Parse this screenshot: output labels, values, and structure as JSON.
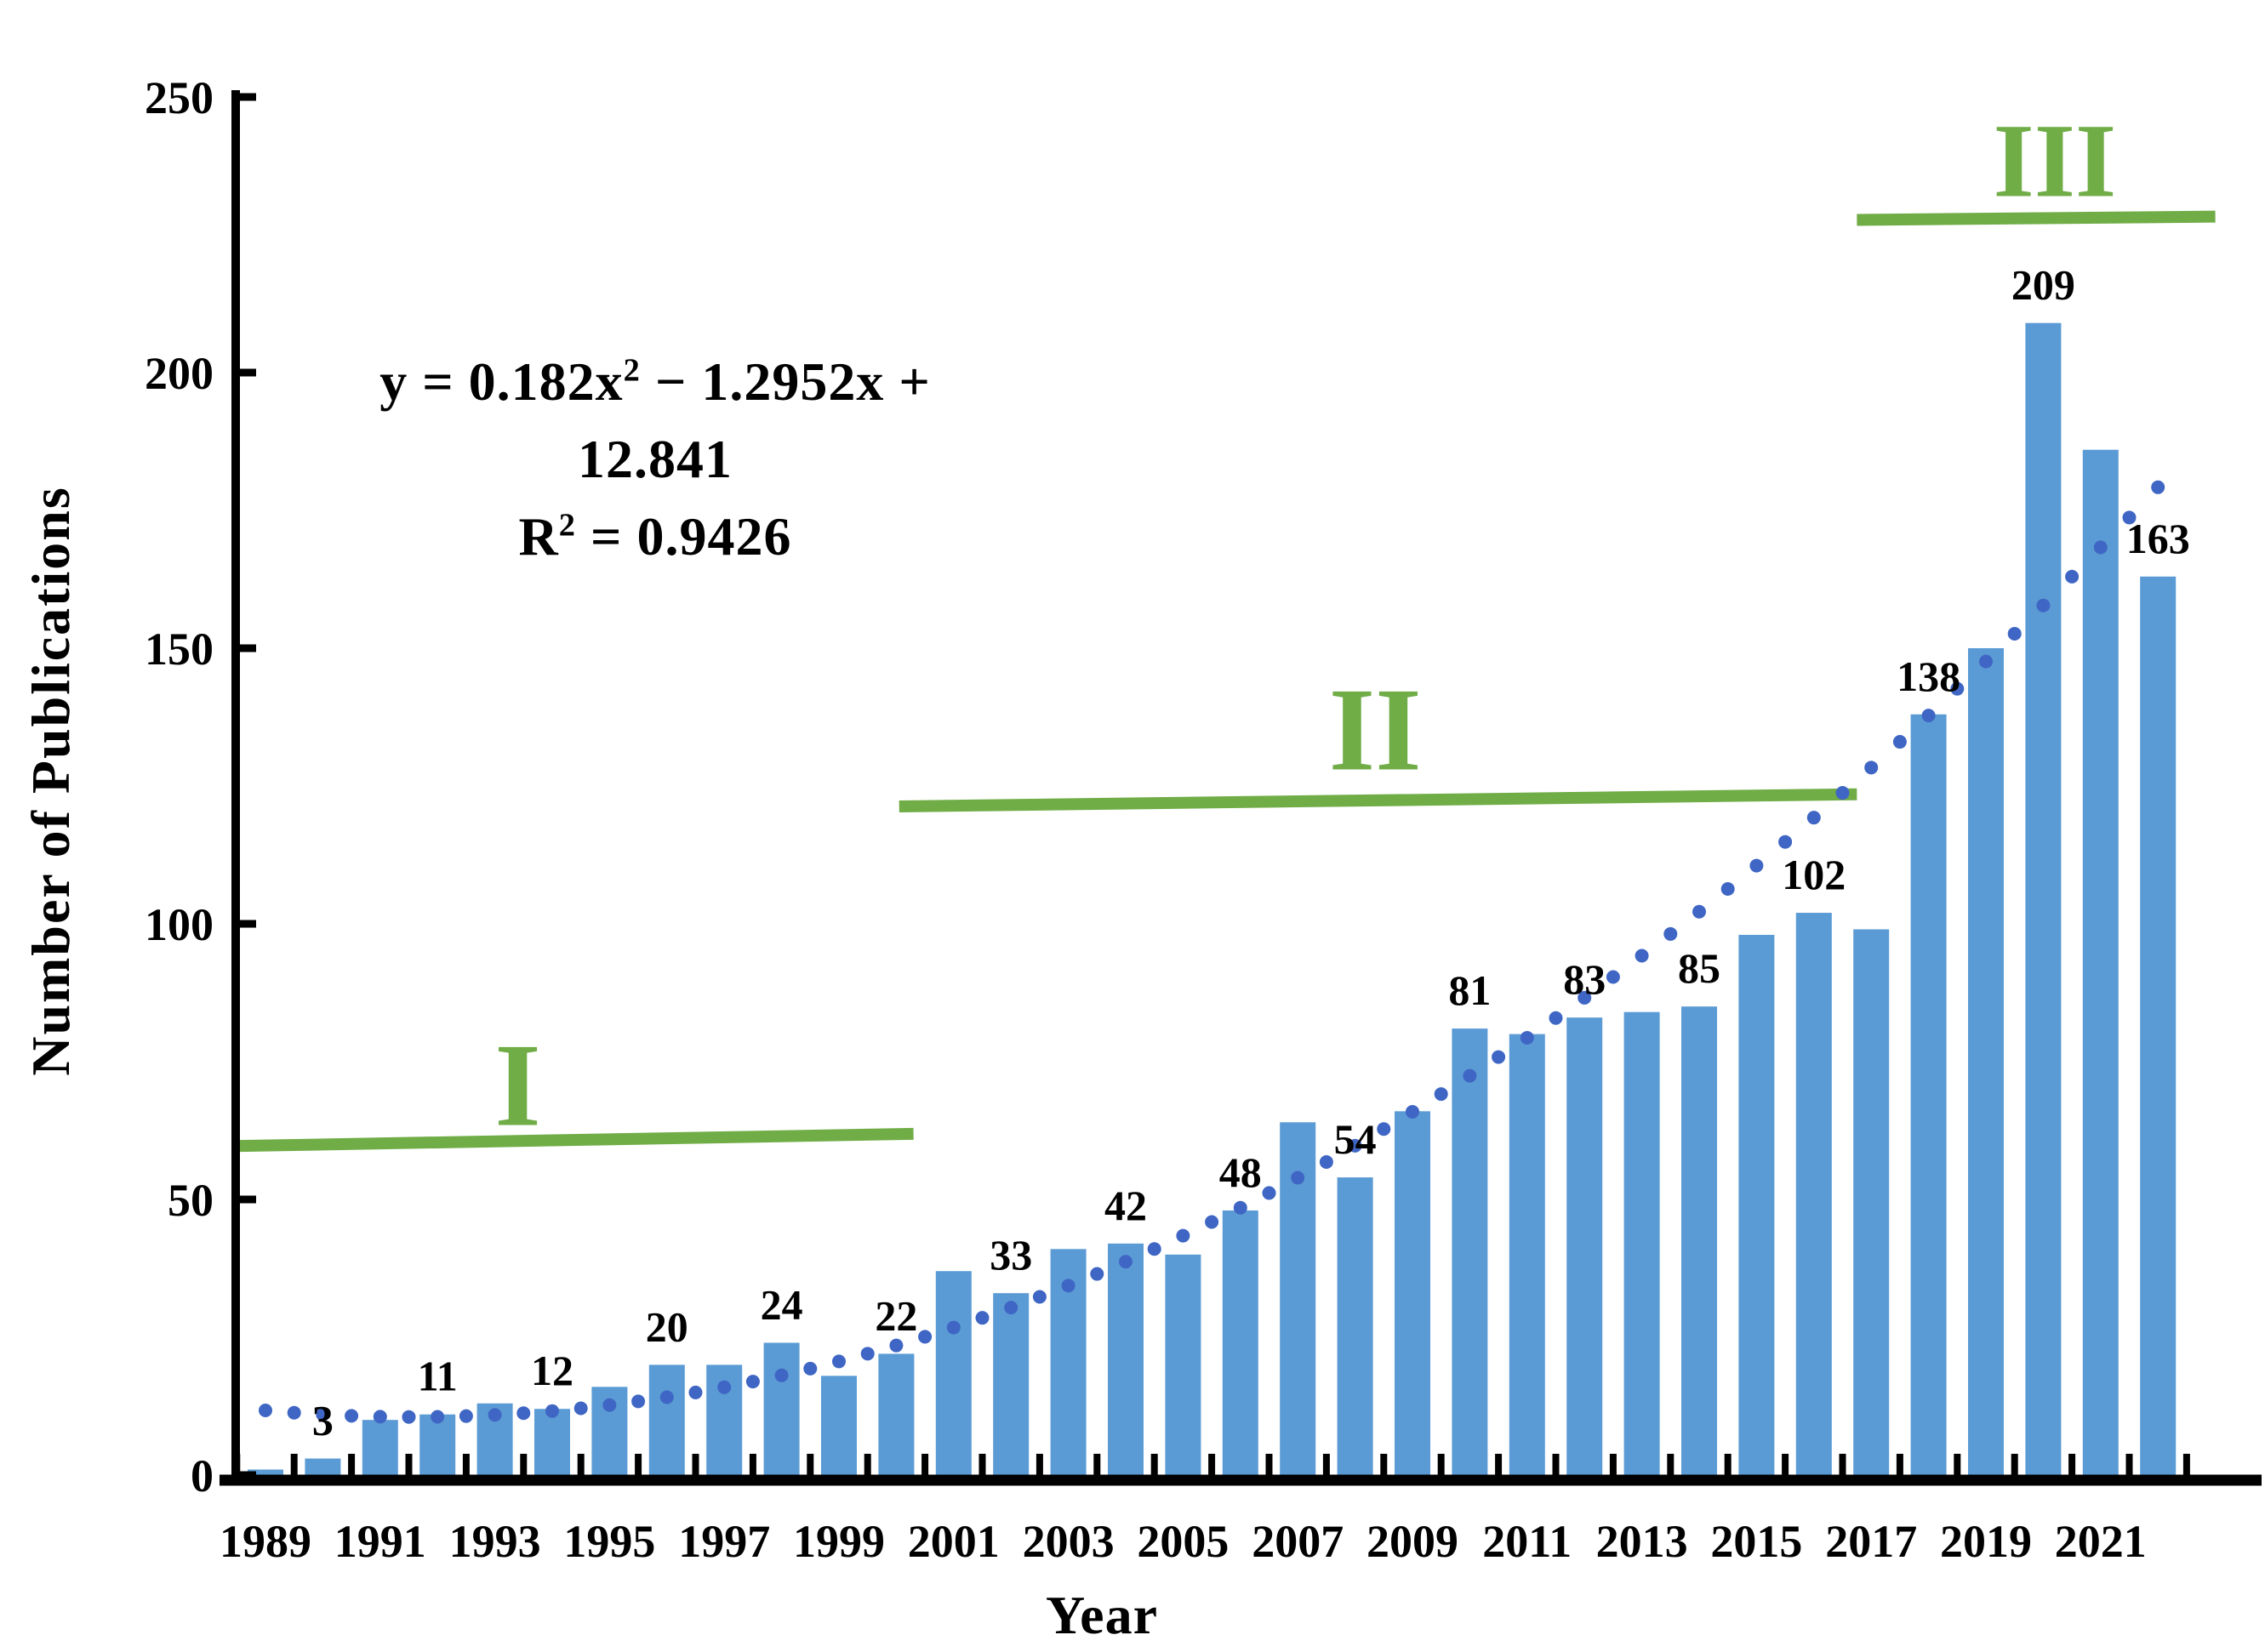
{
  "chart_data": {
    "type": "bar",
    "title": "",
    "xlabel": "Year",
    "ylabel": "Number of Publications",
    "ylim": [
      0,
      250
    ],
    "ytick_step": 50,
    "grid": false,
    "legend": "none",
    "bar_color": "#5B9BD5",
    "dot_color": "#3F66C4",
    "phase_color": "#70AD47",
    "series": [
      {
        "year": 1989,
        "value": 1,
        "label": ""
      },
      {
        "year": 1990,
        "value": 3,
        "label": "3"
      },
      {
        "year": 1991,
        "value": 10,
        "label": ""
      },
      {
        "year": 1992,
        "value": 11,
        "label": "11"
      },
      {
        "year": 1993,
        "value": 13,
        "label": ""
      },
      {
        "year": 1994,
        "value": 12,
        "label": "12"
      },
      {
        "year": 1995,
        "value": 16,
        "label": ""
      },
      {
        "year": 1996,
        "value": 20,
        "label": "20"
      },
      {
        "year": 1997,
        "value": 20,
        "label": ""
      },
      {
        "year": 1998,
        "value": 24,
        "label": "24"
      },
      {
        "year": 1999,
        "value": 18,
        "label": ""
      },
      {
        "year": 2000,
        "value": 22,
        "label": "22"
      },
      {
        "year": 2001,
        "value": 37,
        "label": ""
      },
      {
        "year": 2002,
        "value": 33,
        "label": "33"
      },
      {
        "year": 2003,
        "value": 41,
        "label": ""
      },
      {
        "year": 2004,
        "value": 42,
        "label": "42"
      },
      {
        "year": 2005,
        "value": 40,
        "label": ""
      },
      {
        "year": 2006,
        "value": 48,
        "label": "48"
      },
      {
        "year": 2007,
        "value": 64,
        "label": ""
      },
      {
        "year": 2008,
        "value": 54,
        "label": "54"
      },
      {
        "year": 2009,
        "value": 66,
        "label": ""
      },
      {
        "year": 2010,
        "value": 81,
        "label": "81"
      },
      {
        "year": 2011,
        "value": 80,
        "label": ""
      },
      {
        "year": 2012,
        "value": 83,
        "label": "83"
      },
      {
        "year": 2013,
        "value": 84,
        "label": ""
      },
      {
        "year": 2014,
        "value": 85,
        "label": "85"
      },
      {
        "year": 2015,
        "value": 98,
        "label": ""
      },
      {
        "year": 2016,
        "value": 102,
        "label": "102"
      },
      {
        "year": 2017,
        "value": 99,
        "label": ""
      },
      {
        "year": 2018,
        "value": 138,
        "label": "138"
      },
      {
        "year": 2019,
        "value": 150,
        "label": ""
      },
      {
        "year": 2020,
        "value": 209,
        "label": "209"
      },
      {
        "year": 2021,
        "value": 186,
        "label": ""
      },
      {
        "year": 2022,
        "value": 163,
        "label": "163"
      }
    ],
    "x_tick_years": [
      1989,
      1991,
      1993,
      1995,
      1997,
      1999,
      2001,
      2003,
      2005,
      2007,
      2009,
      2011,
      2013,
      2015,
      2017,
      2019,
      2021
    ],
    "y_ticks": [
      0,
      50,
      100,
      150,
      200,
      250
    ],
    "trendline": {
      "style": "dotted",
      "equation": "y = 0.182x² − 1.2952x + 12.841",
      "r_squared": "R² = 0.9426",
      "a": 0.182,
      "b": -1.2952,
      "c": 12.841,
      "x_start": 1,
      "x_end": 34,
      "x_step": 0.5
    },
    "phases": [
      {
        "label": "I",
        "x_start_year": 1988.55,
        "x_end_year": 2000.3,
        "value_start": 59.7,
        "value_end": 61.9,
        "label_year": 1993.4,
        "label_baseline_value": 63.5,
        "font": 140
      },
      {
        "label": "II",
        "x_start_year": 2000.05,
        "x_end_year": 2016.75,
        "value_start": 121.3,
        "value_end": 123.5,
        "label_year": 2008.35,
        "label_baseline_value": 128.0,
        "font": 140
      },
      {
        "label": "III",
        "x_start_year": 2016.75,
        "x_end_year": 2023.0,
        "value_start": 227.7,
        "value_end": 228.3,
        "label_year": 2020.2,
        "label_baseline_value": 232.0,
        "font": 124
      }
    ]
  },
  "equation": {
    "line1": [
      "y = 0.182x",
      "2",
      " − 1.2952x + 12.841"
    ],
    "line2": [
      "R",
      "2",
      " = 0.9426"
    ]
  },
  "axes": {
    "x_title": "Year",
    "y_title": "Number of Publications"
  }
}
